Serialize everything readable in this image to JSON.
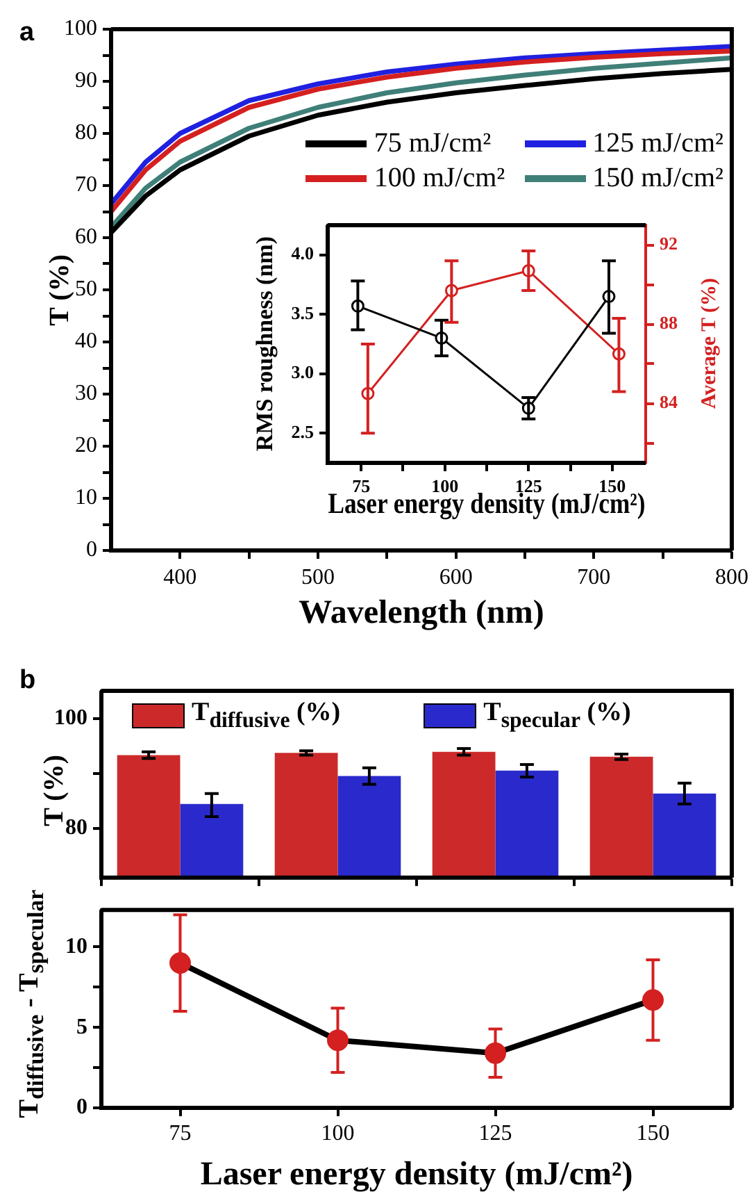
{
  "chart_data": [
    {
      "type": "line",
      "annotations": [
        "a"
      ],
      "xlabel": "Wavelength (nm)",
      "ylabel": "T (%)",
      "x": [
        350,
        375,
        400,
        450,
        500,
        550,
        600,
        650,
        700,
        750,
        800
      ],
      "xlim": [
        350,
        800
      ],
      "xticks": [
        400,
        {
          "value": 450,
          "label": null
        },
        500,
        {
          "value": 550,
          "label": null
        },
        600,
        {
          "value": 650,
          "label": null
        },
        700,
        {
          "value": 750,
          "label": null
        },
        800
      ],
      "ylim": [
        0,
        100
      ],
      "yticks": [
        0,
        {
          "value": 5,
          "label": null
        },
        10,
        {
          "value": 15,
          "label": null
        },
        20,
        {
          "value": 25,
          "label": null
        },
        30,
        {
          "value": 35,
          "label": null
        },
        40,
        {
          "value": 45,
          "label": null
        },
        50,
        {
          "value": 55,
          "label": null
        },
        60,
        {
          "value": 65,
          "label": null
        },
        70,
        {
          "value": 75,
          "label": null
        },
        80,
        {
          "value": 85,
          "label": null
        },
        90,
        {
          "value": 95,
          "label": null
        },
        100
      ],
      "legend": "top right",
      "series": [
        {
          "name": "75  mJ/cm²",
          "color": "#000000",
          "values": [
            61,
            68,
            73,
            79.5,
            83.5,
            86,
            87.8,
            89.2,
            90.5,
            91.5,
            92.3
          ]
        },
        {
          "name": "100 mJ/cm²",
          "color": "#d42020",
          "values": [
            65,
            73,
            78.5,
            85,
            88.5,
            90.8,
            92.5,
            93.7,
            94.6,
            95.3,
            95.8
          ]
        },
        {
          "name": "125 mJ/cm²",
          "color": "#2020e0",
          "values": [
            66.5,
            74.5,
            80,
            86.3,
            89.5,
            91.8,
            93.3,
            94.5,
            95.3,
            96,
            96.7
          ]
        },
        {
          "name": "150 mJ/cm²",
          "color": "#3f7f78",
          "values": [
            62,
            69.5,
            74.5,
            81,
            85,
            87.8,
            89.7,
            91.2,
            92.5,
            93.5,
            94.5
          ]
        }
      ]
    },
    {
      "type": "line",
      "xlabel": "Laser energy density (mJ/cm²)",
      "ylabel": "RMS roughness (nm)",
      "y2label": "Average T (%)",
      "xlim": [
        65,
        160
      ],
      "xticks": [
        75,
        {
          "value": 87.5,
          "label": null
        },
        100,
        {
          "value": 112.5,
          "label": null
        },
        125,
        {
          "value": 137.5,
          "label": null
        },
        150
      ],
      "ylim": [
        2.25,
        4.25
      ],
      "yticks": [
        2.5,
        {
          "value": 3,
          "label": "3.0"
        },
        3.5,
        {
          "value": 4,
          "label": "4.0"
        }
      ],
      "y2lim": [
        81,
        93
      ],
      "y2ticks": [
        {
          "value": 82,
          "label": null
        },
        84,
        {
          "value": 86,
          "label": null
        },
        88,
        {
          "value": 90,
          "label": null
        },
        92
      ],
      "marker": "circle",
      "series": [
        {
          "color": "#000000",
          "x": [
            74,
            99,
            125,
            149
          ],
          "values": [
            3.57,
            3.3,
            2.71,
            3.65
          ],
          "errors": [
            [
              3.37,
              3.78
            ],
            [
              3.15,
              3.45
            ],
            [
              2.62,
              2.8
            ],
            [
              3.34,
              3.95
            ]
          ]
        },
        {
          "color": "#d42020",
          "axis": "y2",
          "x": [
            77,
            102,
            125,
            152
          ],
          "values": [
            84.5,
            89.7,
            90.7,
            86.5
          ],
          "errors": [
            [
              82.5,
              87
            ],
            [
              88.1,
              91.2
            ],
            [
              89.7,
              91.7
            ],
            [
              84.6,
              88.3
            ]
          ]
        }
      ]
    },
    {
      "type": "bar",
      "annotations": [
        "b"
      ],
      "ylabel": "T (%)",
      "categories": [
        "75",
        "100",
        "125",
        "150"
      ],
      "ylim": [
        71,
        105
      ],
      "yticks": [
        80,
        {
          "value": 90,
          "label": null
        },
        100
      ],
      "tick_labels": "y",
      "legend": "top",
      "series": [
        {
          "name": "T$_{diffusive}$ (%)",
          "color": "#cc2a2a",
          "values": [
            93.3,
            93.7,
            93.9,
            93
          ],
          "errors": [
            [
              92.7,
              93.9
            ],
            [
              93.3,
              94.1
            ],
            [
              93.3,
              94.5
            ],
            [
              92.5,
              93.5
            ]
          ]
        },
        {
          "name": "T$_{specular}$ (%)",
          "color": "#2a2acc",
          "values": [
            84.4,
            89.5,
            90.5,
            86.3
          ],
          "errors": [
            [
              82.1,
              86.3
            ],
            [
              88,
              91
            ],
            [
              89.3,
              91.6
            ],
            [
              84.4,
              88.2
            ]
          ]
        }
      ]
    },
    {
      "type": "line",
      "xlabel": "Laser energy density (mJ/cm²)",
      "ylabel": "T$_{diffusive}$ - T$_{specular}$",
      "categories": [
        "75",
        "100",
        "125",
        "150"
      ],
      "ylim": [
        0,
        12.3
      ],
      "yticks": [
        0,
        {
          "value": 2.5,
          "label": null
        },
        5,
        {
          "value": 7.5,
          "label": null
        },
        10
      ],
      "marker": "circle",
      "series": [
        {
          "color": "#000000",
          "colors": [
            "#d42020",
            "#d42020",
            "#d42020",
            "#d42020"
          ],
          "values": [
            9,
            4.2,
            3.4,
            6.7
          ],
          "errors": [
            [
              6,
              12
            ],
            [
              2.2,
              6.2
            ],
            [
              1.9,
              4.9
            ],
            [
              4.2,
              9.2
            ]
          ]
        }
      ]
    }
  ]
}
